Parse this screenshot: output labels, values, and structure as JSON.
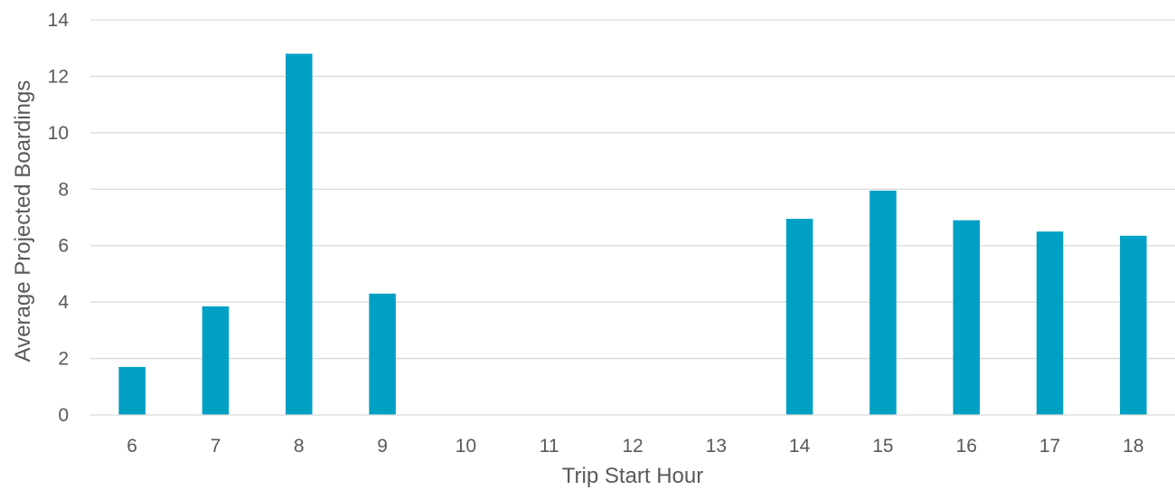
{
  "chart_data": {
    "type": "bar",
    "categories": [
      "6",
      "7",
      "8",
      "9",
      "10",
      "11",
      "12",
      "13",
      "14",
      "15",
      "16",
      "17",
      "18"
    ],
    "values": [
      1.7,
      3.85,
      12.8,
      4.3,
      0,
      0,
      0,
      0,
      6.95,
      7.95,
      6.9,
      6.5,
      6.35
    ],
    "title": "",
    "xlabel": "Trip Start Hour",
    "ylabel": "Average Projected Boardings",
    "ylim": [
      0,
      14
    ],
    "yticks": [
      0,
      2,
      4,
      6,
      8,
      10,
      12,
      14
    ],
    "grid": true,
    "legend": "none",
    "bar_color": "#00a0c4"
  }
}
